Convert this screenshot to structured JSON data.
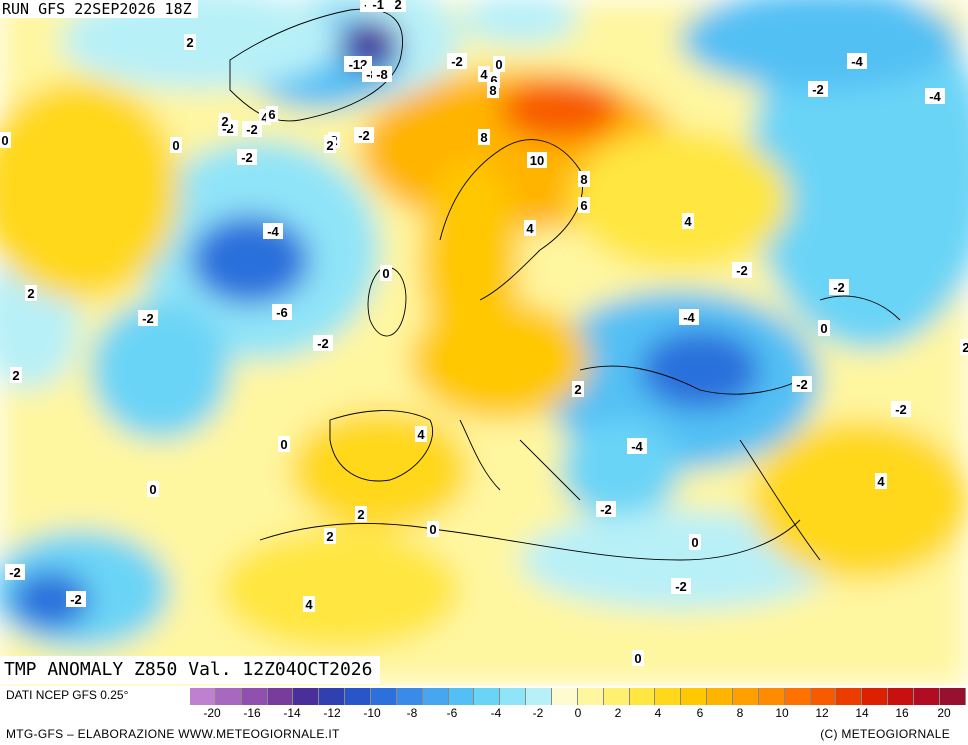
{
  "header": {
    "run": "RUN GFS 22SEP2026 18Z"
  },
  "map_title": "TMP ANOMALY Z850 Val. 12Z04OCT2026",
  "footer": {
    "source": "DATI NCEP GFS 0.25°",
    "credit_left": "MTG-GFS – ELABORAZIONE WWW.METEOGIORNALE.IT",
    "credit_right": "(C) METEOGIORNALE"
  },
  "colorbar": {
    "colors": [
      "#c080d0",
      "#a868c0",
      "#9050b0",
      "#783c9c",
      "#4a2f9a",
      "#3040b0",
      "#2855c8",
      "#2c70dc",
      "#3a8ae8",
      "#46a6f0",
      "#52c0f4",
      "#6ad4f6",
      "#90e4f8",
      "#b8f0f8",
      "#fffbd0",
      "#fff6a0",
      "#fff070",
      "#ffe640",
      "#ffd81c",
      "#ffc800",
      "#ffb400",
      "#ffa000",
      "#ff8c00",
      "#ff7200",
      "#f85a00",
      "#ec3c00",
      "#dc2000",
      "#c81010",
      "#b00c24",
      "#981030"
    ],
    "ticks": [
      "-20",
      "-16",
      "-14",
      "-12",
      "-10",
      "-8",
      "-6",
      "-4",
      "-2",
      "0",
      "2",
      "4",
      "6",
      "8",
      "10",
      "12",
      "14",
      "16",
      "20"
    ]
  },
  "anomaly_labels": [
    "-3",
    "-2",
    "-1 ",
    "-12",
    "-8",
    "-8",
    "0",
    "-2",
    "2",
    "-2",
    "4",
    "6",
    "2",
    "-2",
    "2",
    "-2",
    "2",
    "2",
    "-2",
    "0",
    "0",
    "4",
    "6",
    "8",
    "8",
    "10",
    "8",
    "6",
    "4",
    "4",
    "-4",
    "-6",
    "-2",
    "-2",
    "0",
    "-2",
    "-4",
    "-2",
    "-4",
    "-2",
    "-4",
    "4",
    "2",
    "-2",
    "0",
    "2",
    "4",
    "-2",
    "0",
    "2",
    "2",
    "0",
    "-4",
    "-2",
    "-2",
    "0",
    "2",
    "4",
    "-2",
    "2",
    "0",
    "0",
    "-2"
  ],
  "colors": {
    "cold": "#3a8ae8",
    "warm": "#ffb400",
    "neutral": "#fff6a0"
  }
}
